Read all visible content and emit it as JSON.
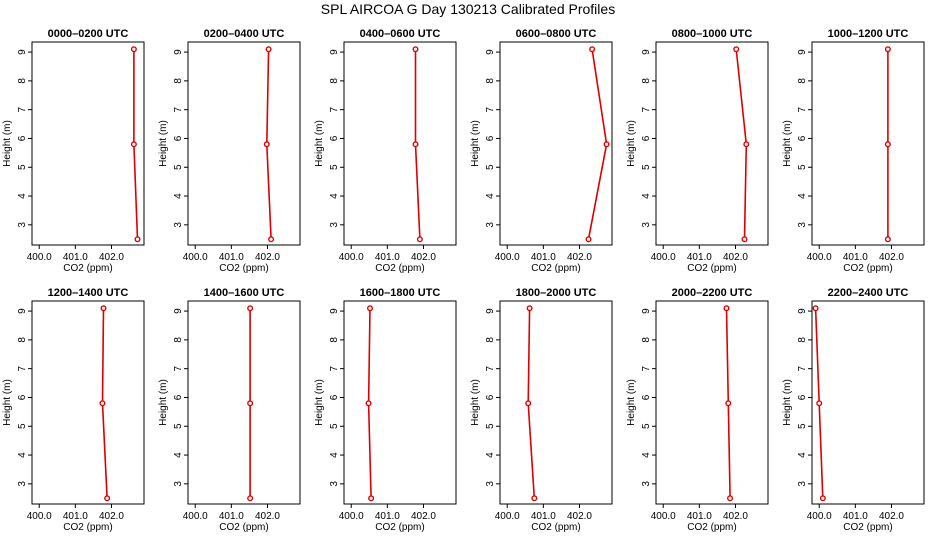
{
  "title": "SPL AIRCOA G  Day 130213  Calibrated Profiles",
  "chart_data": [
    {
      "type": "line",
      "title": "0000–0200 UTC",
      "xlabel": "CO2 (ppm)",
      "ylabel": "Height (m)",
      "xlim": [
        399.8,
        402.9
      ],
      "ylim": [
        2.3,
        9.35
      ],
      "xticks": [
        "400.0",
        "401.0",
        "402.0"
      ],
      "yticks": [
        "3",
        "4",
        "5",
        "6",
        "7",
        "8",
        "9"
      ],
      "x": [
        402.72,
        402.62,
        402.62
      ],
      "y": [
        2.5,
        5.8,
        9.1
      ]
    },
    {
      "type": "line",
      "title": "0200–0400 UTC",
      "xlabel": "CO2 (ppm)",
      "ylabel": "Height (m)",
      "xlim": [
        399.8,
        402.9
      ],
      "ylim": [
        2.3,
        9.35
      ],
      "xticks": [
        "400.0",
        "401.0",
        "402.0"
      ],
      "yticks": [
        "3",
        "4",
        "5",
        "6",
        "7",
        "8",
        "9"
      ],
      "x": [
        402.1,
        401.98,
        402.03
      ],
      "y": [
        2.5,
        5.8,
        9.1
      ]
    },
    {
      "type": "line",
      "title": "0400–0600 UTC",
      "xlabel": "CO2 (ppm)",
      "ylabel": "Height (m)",
      "xlim": [
        399.8,
        402.9
      ],
      "ylim": [
        2.3,
        9.35
      ],
      "xticks": [
        "400.0",
        "401.0",
        "402.0"
      ],
      "yticks": [
        "3",
        "4",
        "5",
        "6",
        "7",
        "8",
        "9"
      ],
      "x": [
        401.9,
        401.78,
        401.78
      ],
      "y": [
        2.5,
        5.8,
        9.1
      ]
    },
    {
      "type": "line",
      "title": "0600–0800 UTC",
      "xlabel": "CO2 (ppm)",
      "ylabel": "Height (m)",
      "xlim": [
        399.8,
        402.9
      ],
      "ylim": [
        2.3,
        9.35
      ],
      "xticks": [
        "400.0",
        "401.0",
        "402.0"
      ],
      "yticks": [
        "3",
        "4",
        "5",
        "6",
        "7",
        "8",
        "9"
      ],
      "x": [
        402.25,
        402.75,
        402.35
      ],
      "y": [
        2.5,
        5.8,
        9.1
      ]
    },
    {
      "type": "line",
      "title": "0800–1000 UTC",
      "xlabel": "CO2 (ppm)",
      "ylabel": "Height (m)",
      "xlim": [
        399.8,
        402.9
      ],
      "ylim": [
        2.3,
        9.35
      ],
      "xticks": [
        "400.0",
        "401.0",
        "402.0"
      ],
      "yticks": [
        "3",
        "4",
        "5",
        "6",
        "7",
        "8",
        "9"
      ],
      "x": [
        402.25,
        402.3,
        402.02
      ],
      "y": [
        2.5,
        5.8,
        9.1
      ]
    },
    {
      "type": "line",
      "title": "1000–1200 UTC",
      "xlabel": "CO2 (ppm)",
      "ylabel": "Height (m)",
      "xlim": [
        399.8,
        402.9
      ],
      "ylim": [
        2.3,
        9.35
      ],
      "xticks": [
        "400.0",
        "401.0",
        "402.0"
      ],
      "yticks": [
        "3",
        "4",
        "5",
        "6",
        "7",
        "8",
        "9"
      ],
      "x": [
        401.9,
        401.9,
        401.9
      ],
      "y": [
        2.5,
        5.8,
        9.1
      ]
    },
    {
      "type": "line",
      "title": "1200–1400 UTC",
      "xlabel": "CO2 (ppm)",
      "ylabel": "Height (m)",
      "xlim": [
        399.8,
        402.9
      ],
      "ylim": [
        2.3,
        9.35
      ],
      "xticks": [
        "400.0",
        "401.0",
        "402.0"
      ],
      "yticks": [
        "3",
        "4",
        "5",
        "6",
        "7",
        "8",
        "9"
      ],
      "x": [
        401.88,
        401.75,
        401.78
      ],
      "y": [
        2.5,
        5.8,
        9.1
      ]
    },
    {
      "type": "line",
      "title": "1400–1600 UTC",
      "xlabel": "CO2 (ppm)",
      "ylabel": "Height (m)",
      "xlim": [
        399.8,
        402.9
      ],
      "ylim": [
        2.3,
        9.35
      ],
      "xticks": [
        "400.0",
        "401.0",
        "402.0"
      ],
      "yticks": [
        "3",
        "4",
        "5",
        "6",
        "7",
        "8",
        "9"
      ],
      "x": [
        401.52,
        401.52,
        401.52
      ],
      "y": [
        2.5,
        5.8,
        9.1
      ]
    },
    {
      "type": "line",
      "title": "1600–1800 UTC",
      "xlabel": "CO2 (ppm)",
      "ylabel": "Height (m)",
      "xlim": [
        399.8,
        402.9
      ],
      "ylim": [
        2.3,
        9.35
      ],
      "xticks": [
        "400.0",
        "401.0",
        "402.0"
      ],
      "yticks": [
        "3",
        "4",
        "5",
        "6",
        "7",
        "8",
        "9"
      ],
      "x": [
        400.55,
        400.48,
        400.52
      ],
      "y": [
        2.5,
        5.8,
        9.1
      ]
    },
    {
      "type": "line",
      "title": "1800–2000 UTC",
      "xlabel": "CO2 (ppm)",
      "ylabel": "Height (m)",
      "xlim": [
        399.8,
        402.9
      ],
      "ylim": [
        2.3,
        9.35
      ],
      "xticks": [
        "400.0",
        "401.0",
        "402.0"
      ],
      "yticks": [
        "3",
        "4",
        "5",
        "6",
        "7",
        "8",
        "9"
      ],
      "x": [
        400.75,
        400.58,
        400.62
      ],
      "y": [
        2.5,
        5.8,
        9.1
      ]
    },
    {
      "type": "line",
      "title": "2000–2200 UTC",
      "xlabel": "CO2 (ppm)",
      "ylabel": "Height (m)",
      "xlim": [
        399.8,
        402.9
      ],
      "ylim": [
        2.3,
        9.35
      ],
      "xticks": [
        "400.0",
        "401.0",
        "402.0"
      ],
      "yticks": [
        "3",
        "4",
        "5",
        "6",
        "7",
        "8",
        "9"
      ],
      "x": [
        401.85,
        401.8,
        401.75
      ],
      "y": [
        2.5,
        5.8,
        9.1
      ]
    },
    {
      "type": "line",
      "title": "2200–2400 UTC",
      "xlabel": "CO2 (ppm)",
      "ylabel": "Height (m)",
      "xlim": [
        399.8,
        402.9
      ],
      "ylim": [
        2.3,
        9.35
      ],
      "xticks": [
        "400.0",
        "401.0",
        "402.0"
      ],
      "yticks": [
        "3",
        "4",
        "5",
        "6",
        "7",
        "8",
        "9"
      ],
      "x": [
        400.1,
        400.0,
        399.9
      ],
      "y": [
        2.5,
        5.8,
        9.1
      ]
    }
  ],
  "colors": {
    "line": "#dd0000",
    "axis": "#000000"
  }
}
